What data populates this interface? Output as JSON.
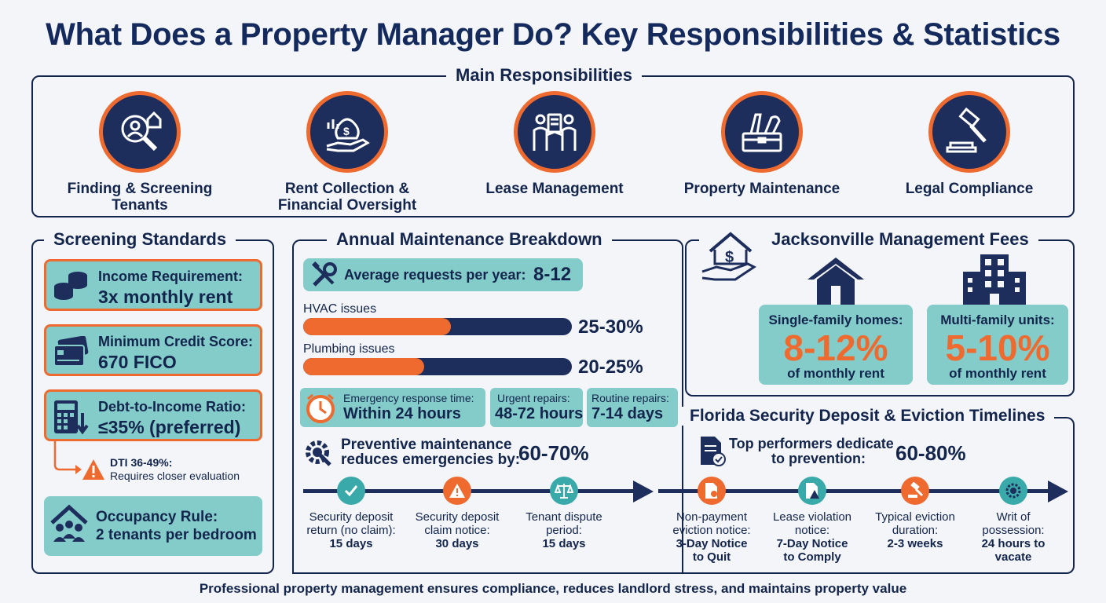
{
  "title": "What Does a Property Manager Do? Key Responsibilities & Statistics",
  "responsibilities": {
    "heading": "Main Responsibilities",
    "items": [
      {
        "label": "Finding & Screening Tenants",
        "icon": "tenant-search-icon"
      },
      {
        "label": "Rent Collection & Financial Oversight",
        "icon": "money-bag-hand-icon"
      },
      {
        "label": "Lease Management",
        "icon": "lease-handshake-icon"
      },
      {
        "label": "Property Maintenance",
        "icon": "toolbox-icon"
      },
      {
        "label": "Legal Compliance",
        "icon": "gavel-icon"
      }
    ]
  },
  "screening": {
    "heading": "Screening Standards",
    "income": {
      "label": "Income Requirement:",
      "value": "3x monthly rent"
    },
    "credit": {
      "label": "Minimum Credit Score:",
      "value": "670 FICO"
    },
    "dti": {
      "label": "Debt-to-Income Ratio:",
      "value": "≤35% (preferred)"
    },
    "dti_warning": {
      "label": "DTI 36-49%:",
      "value": "Requires closer evaluation"
    },
    "occupancy": {
      "label": "Occupancy Rule:",
      "value": "2 tenants per bedroom"
    }
  },
  "maintenance": {
    "heading": "Annual Maintenance Breakdown",
    "avg_requests_label": "Average requests per year:",
    "avg_requests_value": "8-12",
    "bars": [
      {
        "label": "HVAC issues",
        "value": "25-30%",
        "fill_fraction": 0.275
      },
      {
        "label": "Plumbing issues",
        "value": "20-25%",
        "fill_fraction": 0.225
      }
    ],
    "response": [
      {
        "label": "Emergency response time:",
        "value": "Within 24 hours"
      },
      {
        "label": "Urgent repairs:",
        "value": "48-72 hours"
      },
      {
        "label": "Routine repairs:",
        "value": "7-14 days"
      }
    ],
    "preventive_label": "Preventive maintenance reduces emergencies by:",
    "preventive_line1": "Preventive maintenance",
    "preventive_line2": "reduces emergencies by:",
    "preventive_value": "60-70%",
    "top_performers_line1": "Top performers dedicate",
    "top_performers_line2": "to prevention:",
    "top_performers_value": "60-80%"
  },
  "fees": {
    "heading": "Jacksonville Management Fees",
    "single": {
      "label": "Single-family homes:",
      "value": "8-12%",
      "sub": "of monthly rent"
    },
    "multi": {
      "label": "Multi-family units:",
      "value": "5-10%",
      "sub": "of monthly rent"
    }
  },
  "timelines": {
    "heading": "Florida Security Deposit & Eviction Timelines",
    "steps": [
      {
        "line1": "Security deposit",
        "line2": "return (no claim):",
        "value": "15 days",
        "icon": "checkmark-icon",
        "color": "#3aa9a9"
      },
      {
        "line1": "Security deposit",
        "line2": "claim notice:",
        "value": "30 days",
        "icon": "warning-icon",
        "color": "#ee6a2f"
      },
      {
        "line1": "Tenant dispute",
        "line2": "period:",
        "value": "15 days",
        "icon": "scales-icon",
        "color": "#3aa9a9"
      },
      {
        "line1": "Non-payment",
        "line2": "eviction notice:",
        "value": "3-Day Notice",
        "value2": "to Quit",
        "icon": "notice-document-icon",
        "color": "#ee6a2f"
      },
      {
        "line1": "Lease violation",
        "line2": "notice:",
        "value": "7-Day Notice",
        "value2": "to Comply",
        "icon": "violation-document-icon",
        "color": "#3aa9a9"
      },
      {
        "line1": "Typical eviction",
        "line2": "duration:",
        "value": "2-3 weeks",
        "icon": "gavel-icon",
        "color": "#ee6a2f"
      },
      {
        "line1": "Writ of",
        "line2": "possession:",
        "value": "24 hours to",
        "value2": "vacate",
        "icon": "seal-icon",
        "color": "#3aa9a9"
      }
    ]
  },
  "footer": "Professional property management ensures compliance, reduces landlord stress, and maintains property value",
  "colors": {
    "navy": "#13254d",
    "orange": "#ee6a2f",
    "teal": "#84ccc9"
  }
}
